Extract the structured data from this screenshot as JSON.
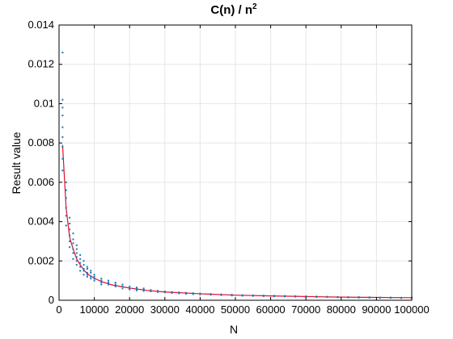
{
  "chart_data": {
    "type": "scatter",
    "title": "C(n) / n",
    "title_superscript": "2",
    "xlabel": "N",
    "ylabel": "Result value",
    "xlim": [
      0,
      100000
    ],
    "ylim": [
      0,
      0.014
    ],
    "x_ticks": [
      0,
      10000,
      20000,
      30000,
      40000,
      50000,
      60000,
      70000,
      80000,
      90000,
      100000
    ],
    "x_tick_labels": [
      "0",
      "10000",
      "20000",
      "30000",
      "40000",
      "50000",
      "60000",
      "70000",
      "80000",
      "90000",
      "100000"
    ],
    "y_ticks": [
      0,
      0.002,
      0.004,
      0.006,
      0.008,
      0.01,
      0.012,
      0.014
    ],
    "y_tick_labels": [
      "0",
      "0.002",
      "0.004",
      "0.006",
      "0.008",
      "0.01",
      "0.012",
      "0.014"
    ],
    "grid": true,
    "colors": {
      "points": "#1f77b4",
      "fit_line": "#e0102a",
      "frame": "#000000",
      "grid": "#e6e6e6"
    },
    "series": [
      {
        "kind": "scatter",
        "x": [
          1000,
          1000,
          1000,
          1000,
          1000,
          1000,
          1000,
          1000,
          1000,
          2000,
          2000,
          2000,
          2000,
          2000,
          2000,
          3000,
          3000,
          3000,
          3000,
          3000,
          3000,
          4000,
          4000,
          4000,
          4000,
          4000,
          4000,
          5000,
          5000,
          5000,
          5000,
          5000,
          5000,
          6000,
          6000,
          6000,
          6000,
          6000,
          7000,
          7000,
          7000,
          7000,
          7000,
          8000,
          8000,
          8000,
          8000,
          8000,
          9000,
          9000,
          9000,
          9000,
          10000,
          10000,
          10000,
          10000,
          12000,
          12000,
          12000,
          12000,
          14000,
          14000,
          14000,
          16000,
          16000,
          16000,
          18000,
          18000,
          18000,
          20000,
          20000,
          20000,
          22000,
          22000,
          22000,
          24000,
          24000,
          24000,
          26000,
          26000,
          28000,
          28000,
          30000,
          30000,
          32000,
          32000,
          34000,
          34000,
          36000,
          36000,
          38000,
          38000,
          40000,
          40000,
          43000,
          43000,
          46000,
          46000,
          49000,
          49000,
          52000,
          52000,
          55000,
          55000,
          58000,
          58000,
          61000,
          61000,
          64000,
          64000,
          67000,
          67000,
          70000,
          70000,
          73000,
          73000,
          76000,
          76000,
          79000,
          79000,
          82000,
          82000,
          85000,
          85000,
          88000,
          88000,
          91000,
          91000,
          94000,
          94000,
          97000,
          97000,
          100000,
          100000
        ],
        "y": [
          0.0126,
          0.0102,
          0.0098,
          0.0094,
          0.0088,
          0.0083,
          0.0078,
          0.0072,
          0.0066,
          0.006,
          0.0056,
          0.0052,
          0.0047,
          0.0043,
          0.0038,
          0.0042,
          0.0039,
          0.0036,
          0.0033,
          0.003,
          0.0027,
          0.0034,
          0.0031,
          0.0029,
          0.0026,
          0.0024,
          0.0021,
          0.0028,
          0.0026,
          0.0024,
          0.0022,
          0.002,
          0.0018,
          0.0023,
          0.0021,
          0.0019,
          0.0017,
          0.0015,
          0.002,
          0.0018,
          0.0016,
          0.0015,
          0.0013,
          0.0017,
          0.0016,
          0.0014,
          0.0013,
          0.0012,
          0.0015,
          0.0014,
          0.0012,
          0.0011,
          0.0013,
          0.0012,
          0.0011,
          0.001,
          0.0011,
          0.001,
          0.0009,
          0.0008,
          0.001,
          0.0009,
          0.0008,
          0.0009,
          0.0008,
          0.0007,
          0.0008,
          0.0007,
          0.0006,
          0.0007,
          0.0006,
          0.00055,
          0.00065,
          0.00058,
          0.0005,
          0.0006,
          0.00053,
          0.00047,
          0.00052,
          0.00045,
          0.00048,
          0.00042,
          0.00045,
          0.0004,
          0.00042,
          0.00037,
          0.0004,
          0.00035,
          0.00038,
          0.00033,
          0.00036,
          0.00031,
          0.00034,
          0.0003,
          0.00032,
          0.00028,
          0.0003,
          0.00026,
          0.00028,
          0.00024,
          0.00026,
          0.00023,
          0.00025,
          0.00022,
          0.00024,
          0.00021,
          0.00023,
          0.0002,
          0.00022,
          0.00019,
          0.00021,
          0.00018,
          0.0002,
          0.00017,
          0.00019,
          0.00016,
          0.00018,
          0.00016,
          0.00017,
          0.00015,
          0.00016,
          0.00014,
          0.00016,
          0.00013,
          0.00015,
          0.00013,
          0.00014,
          0.00012,
          0.00014,
          0.00012,
          0.00013,
          0.00011,
          0.00013,
          0.00011
        ]
      },
      {
        "kind": "line",
        "x": [
          1000,
          2000,
          3000,
          4000,
          5000,
          6000,
          7000,
          8000,
          10000,
          12000,
          15000,
          20000,
          25000,
          30000,
          40000,
          50000,
          60000,
          70000,
          80000,
          90000,
          100000
        ],
        "y": [
          0.0079,
          0.0047,
          0.0032,
          0.0026,
          0.0021,
          0.0018,
          0.00155,
          0.00135,
          0.00112,
          0.00095,
          0.00078,
          0.00062,
          0.0005,
          0.00042,
          0.00033,
          0.00026,
          0.00022,
          0.00019,
          0.00016,
          0.000145,
          0.00013
        ]
      }
    ]
  }
}
